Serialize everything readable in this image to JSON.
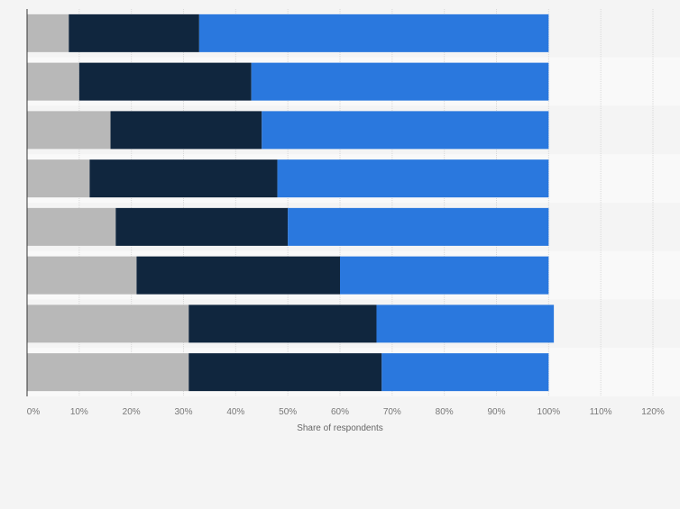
{
  "colors": {
    "background": "#f4f4f4",
    "band_light": "#f9f9f9",
    "gridline": "#d9d9d9",
    "axis": "#333333",
    "series": [
      "#b8b8b8",
      "#10263e",
      "#2a78de"
    ],
    "tick_text": "#777777",
    "label_text": "#666666"
  },
  "chart_data": {
    "type": "bar",
    "orientation": "horizontal",
    "stacked": true,
    "categories": [
      "",
      "",
      "",
      "",
      "",
      "",
      "",
      ""
    ],
    "series": [
      {
        "values": [
          8,
          10,
          16,
          12,
          17,
          21,
          31,
          31
        ]
      },
      {
        "values": [
          25,
          33,
          29,
          36,
          33,
          39,
          36,
          37
        ]
      },
      {
        "values": [
          67,
          57,
          55,
          52,
          50,
          40,
          34,
          32
        ]
      }
    ],
    "xlabel": "Share of respondents",
    "ylabel": "",
    "xlim": [
      0,
      120
    ],
    "xticks": [
      "0%",
      "10%",
      "20%",
      "30%",
      "40%",
      "50%",
      "60%",
      "70%",
      "80%",
      "90%",
      "100%",
      "110%",
      "120%"
    ],
    "grid": true,
    "legend": "none"
  }
}
